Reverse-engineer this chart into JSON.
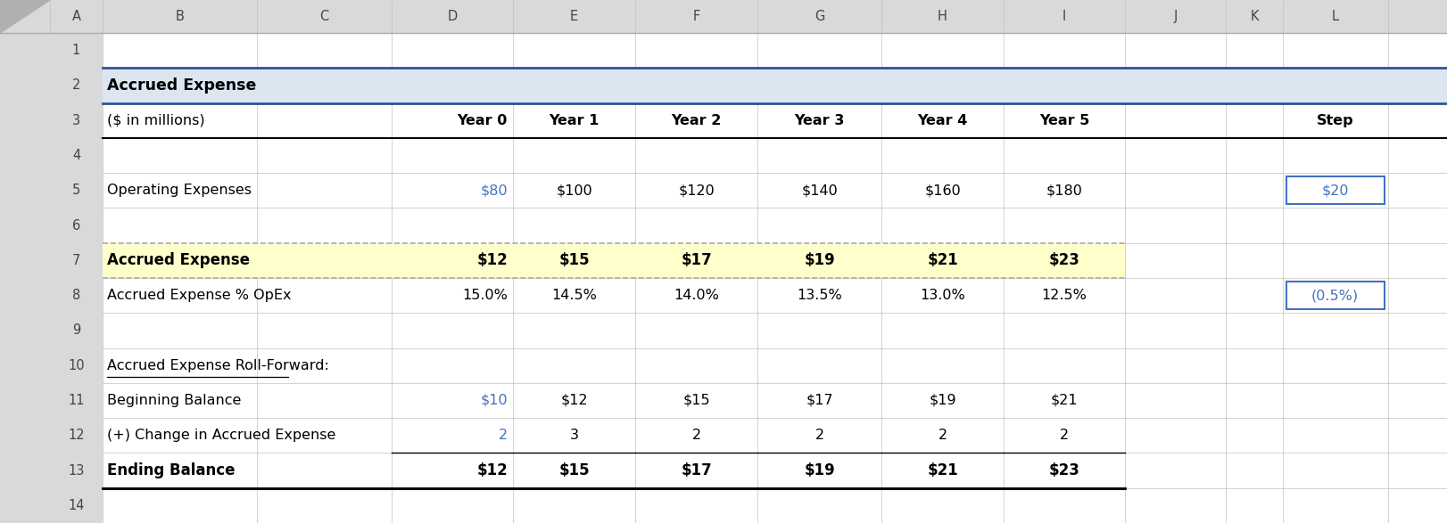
{
  "blue": "#4472c4",
  "black": "#000000",
  "header_bg": "#dce6f1",
  "row7_bg": "#ffffcc",
  "white": "#ffffff",
  "grid_color": "#c0c0c0",
  "col_header_bg": "#d9d9d9",
  "dark_line": "#000000",
  "title_border_top": "#2f5496",
  "title_border_bot": "#2f5496",
  "year_labels": [
    "Year 0",
    "Year 1",
    "Year 2",
    "Year 3",
    "Year 4",
    "Year 5"
  ],
  "op_exp_y0": "$80",
  "op_exp_vals": [
    "$100",
    "$120",
    "$140",
    "$160",
    "$180"
  ],
  "op_exp_step": "$20",
  "acc_exp_y0": "$12",
  "acc_exp_vals": [
    "$15",
    "$17",
    "$19",
    "$21",
    "$23"
  ],
  "pct_y0": "15.0%",
  "pct_vals": [
    "14.5%",
    "14.0%",
    "13.5%",
    "13.0%",
    "12.5%"
  ],
  "pct_step": "(0.5%)",
  "beg_bal_y0": "$10",
  "beg_bal_vals": [
    "$12",
    "$15",
    "$17",
    "$19",
    "$21"
  ],
  "change_y0": "2",
  "change_vals": [
    "3",
    "2",
    "2",
    "2",
    "2"
  ],
  "end_bal_y0": "$12",
  "end_bal_vals": [
    "$15",
    "$17",
    "$19",
    "$21",
    "$23"
  ],
  "col_letters": [
    "A",
    "B",
    "C",
    "D",
    "E",
    "F",
    "G",
    "H",
    "I",
    "J",
    "K",
    "L"
  ],
  "num_rows": 14,
  "fs_main": 11.5,
  "fs_header": 11.5,
  "fs_rownum": 10.5
}
